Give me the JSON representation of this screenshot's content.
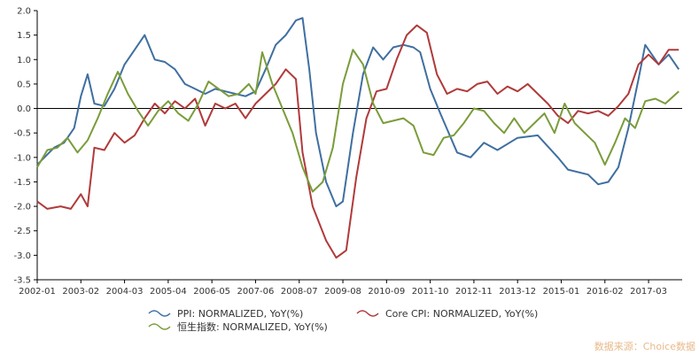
{
  "chart_data": {
    "type": "line",
    "title": "",
    "xlabel": "",
    "ylabel": "",
    "ylim": [
      -3.5,
      2.0
    ],
    "yticks": [
      -3.5,
      -3.0,
      -2.5,
      -2.0,
      -1.5,
      -1.0,
      -0.5,
      0.0,
      0.5,
      1.0,
      1.5,
      2.0
    ],
    "ytick_labels": [
      "-3.5",
      "-3.0",
      "-2.5",
      "-2.0",
      "-1.5",
      "-1.0",
      "-0.5",
      "0.0",
      "0.5",
      "1.0",
      "1.5",
      "2.0"
    ],
    "xlim": [
      "2002-01",
      "2018-01"
    ],
    "xticks": [
      "2002-01",
      "2003-02",
      "2004-03",
      "2005-04",
      "2006-05",
      "2007-06",
      "2008-07",
      "2009-08",
      "2010-09",
      "2011-10",
      "2012-11",
      "2013-12",
      "2015-01",
      "2016-02",
      "2017-03"
    ],
    "grid": false,
    "legend_position": "bottom",
    "series": [
      {
        "name": "PPI: NORMALIZED, YoY(%)",
        "color": "#3f6fa0",
        "points": [
          [
            "2002-01",
            -1.15
          ],
          [
            "2002-06",
            -0.8
          ],
          [
            "2002-09",
            -0.7
          ],
          [
            "2002-12",
            -0.4
          ],
          [
            "2003-02",
            0.25
          ],
          [
            "2003-04",
            0.7
          ],
          [
            "2003-06",
            0.1
          ],
          [
            "2003-09",
            0.05
          ],
          [
            "2003-12",
            0.4
          ],
          [
            "2004-03",
            0.9
          ],
          [
            "2004-06",
            1.2
          ],
          [
            "2004-09",
            1.5
          ],
          [
            "2004-12",
            1.0
          ],
          [
            "2005-03",
            0.95
          ],
          [
            "2005-06",
            0.8
          ],
          [
            "2005-09",
            0.5
          ],
          [
            "2005-12",
            0.4
          ],
          [
            "2006-03",
            0.3
          ],
          [
            "2006-06",
            0.4
          ],
          [
            "2006-09",
            0.35
          ],
          [
            "2006-12",
            0.3
          ],
          [
            "2007-03",
            0.25
          ],
          [
            "2007-06",
            0.35
          ],
          [
            "2007-09",
            0.8
          ],
          [
            "2007-12",
            1.3
          ],
          [
            "2008-03",
            1.5
          ],
          [
            "2008-06",
            1.8
          ],
          [
            "2008-08",
            1.85
          ],
          [
            "2008-10",
            0.8
          ],
          [
            "2008-12",
            -0.5
          ],
          [
            "2009-03",
            -1.5
          ],
          [
            "2009-06",
            -2.0
          ],
          [
            "2009-08",
            -1.9
          ],
          [
            "2009-11",
            -0.5
          ],
          [
            "2010-02",
            0.7
          ],
          [
            "2010-05",
            1.25
          ],
          [
            "2010-08",
            1.0
          ],
          [
            "2010-11",
            1.25
          ],
          [
            "2011-02",
            1.3
          ],
          [
            "2011-05",
            1.25
          ],
          [
            "2011-07",
            1.15
          ],
          [
            "2011-10",
            0.4
          ],
          [
            "2012-01",
            -0.1
          ],
          [
            "2012-06",
            -0.9
          ],
          [
            "2012-10",
            -1.0
          ],
          [
            "2013-02",
            -0.7
          ],
          [
            "2013-06",
            -0.85
          ],
          [
            "2013-12",
            -0.6
          ],
          [
            "2014-06",
            -0.55
          ],
          [
            "2014-12",
            -1.0
          ],
          [
            "2015-03",
            -1.25
          ],
          [
            "2015-09",
            -1.35
          ],
          [
            "2015-12",
            -1.55
          ],
          [
            "2016-03",
            -1.5
          ],
          [
            "2016-06",
            -1.2
          ],
          [
            "2016-09",
            -0.4
          ],
          [
            "2016-12",
            0.6
          ],
          [
            "2017-02",
            1.3
          ],
          [
            "2017-04",
            1.1
          ],
          [
            "2017-06",
            0.9
          ],
          [
            "2017-09",
            1.1
          ],
          [
            "2017-12",
            0.8
          ]
        ]
      },
      {
        "name": "Core CPI: NORMALIZED, YoY(%)",
        "color": "#b03a3a",
        "points": [
          [
            "2002-01",
            -1.9
          ],
          [
            "2002-04",
            -2.05
          ],
          [
            "2002-08",
            -2.0
          ],
          [
            "2002-11",
            -2.05
          ],
          [
            "2003-02",
            -1.75
          ],
          [
            "2003-04",
            -2.0
          ],
          [
            "2003-06",
            -0.8
          ],
          [
            "2003-09",
            -0.85
          ],
          [
            "2003-12",
            -0.5
          ],
          [
            "2004-03",
            -0.7
          ],
          [
            "2004-06",
            -0.55
          ],
          [
            "2004-09",
            -0.2
          ],
          [
            "2004-12",
            0.1
          ],
          [
            "2005-03",
            -0.1
          ],
          [
            "2005-06",
            0.15
          ],
          [
            "2005-09",
            0.0
          ],
          [
            "2005-12",
            0.2
          ],
          [
            "2006-03",
            -0.35
          ],
          [
            "2006-06",
            0.1
          ],
          [
            "2006-09",
            0.0
          ],
          [
            "2006-12",
            0.1
          ],
          [
            "2007-03",
            -0.2
          ],
          [
            "2007-06",
            0.1
          ],
          [
            "2007-09",
            0.3
          ],
          [
            "2007-12",
            0.5
          ],
          [
            "2008-03",
            0.8
          ],
          [
            "2008-06",
            0.6
          ],
          [
            "2008-08",
            -0.9
          ],
          [
            "2008-11",
            -2.0
          ],
          [
            "2009-03",
            -2.7
          ],
          [
            "2009-06",
            -3.05
          ],
          [
            "2009-09",
            -2.9
          ],
          [
            "2009-12",
            -1.4
          ],
          [
            "2010-03",
            -0.2
          ],
          [
            "2010-06",
            0.35
          ],
          [
            "2010-09",
            0.4
          ],
          [
            "2010-12",
            1.0
          ],
          [
            "2011-03",
            1.5
          ],
          [
            "2011-06",
            1.7
          ],
          [
            "2011-09",
            1.55
          ],
          [
            "2011-12",
            0.7
          ],
          [
            "2012-03",
            0.3
          ],
          [
            "2012-06",
            0.4
          ],
          [
            "2012-09",
            0.35
          ],
          [
            "2012-12",
            0.5
          ],
          [
            "2013-03",
            0.55
          ],
          [
            "2013-06",
            0.3
          ],
          [
            "2013-09",
            0.45
          ],
          [
            "2013-12",
            0.35
          ],
          [
            "2014-03",
            0.5
          ],
          [
            "2014-06",
            0.3
          ],
          [
            "2014-09",
            0.1
          ],
          [
            "2014-12",
            -0.15
          ],
          [
            "2015-03",
            -0.3
          ],
          [
            "2015-06",
            -0.05
          ],
          [
            "2015-09",
            -0.1
          ],
          [
            "2015-12",
            -0.05
          ],
          [
            "2016-03",
            -0.15
          ],
          [
            "2016-06",
            0.05
          ],
          [
            "2016-09",
            0.3
          ],
          [
            "2016-12",
            0.9
          ],
          [
            "2017-03",
            1.1
          ],
          [
            "2017-06",
            0.9
          ],
          [
            "2017-09",
            1.2
          ],
          [
            "2017-12",
            1.2
          ]
        ]
      },
      {
        "name": "恒生指数: NORMALIZED, YoY(%)",
        "color": "#7a9c3a",
        "points": [
          [
            "2002-01",
            -1.2
          ],
          [
            "2002-04",
            -0.85
          ],
          [
            "2002-07",
            -0.8
          ],
          [
            "2002-10",
            -0.6
          ],
          [
            "2003-01",
            -0.9
          ],
          [
            "2003-04",
            -0.65
          ],
          [
            "2003-07",
            -0.2
          ],
          [
            "2003-10",
            0.3
          ],
          [
            "2004-01",
            0.75
          ],
          [
            "2004-04",
            0.3
          ],
          [
            "2004-07",
            -0.05
          ],
          [
            "2004-10",
            -0.35
          ],
          [
            "2005-01",
            -0.05
          ],
          [
            "2005-04",
            0.15
          ],
          [
            "2005-07",
            -0.1
          ],
          [
            "2005-10",
            -0.25
          ],
          [
            "2006-01",
            0.1
          ],
          [
            "2006-04",
            0.55
          ],
          [
            "2006-07",
            0.4
          ],
          [
            "2006-10",
            0.25
          ],
          [
            "2007-01",
            0.3
          ],
          [
            "2007-04",
            0.5
          ],
          [
            "2007-06",
            0.3
          ],
          [
            "2007-08",
            1.15
          ],
          [
            "2007-11",
            0.5
          ],
          [
            "2008-02",
            0.0
          ],
          [
            "2008-05",
            -0.5
          ],
          [
            "2008-08",
            -1.2
          ],
          [
            "2008-11",
            -1.7
          ],
          [
            "2009-02",
            -1.5
          ],
          [
            "2009-05",
            -0.8
          ],
          [
            "2009-08",
            0.5
          ],
          [
            "2009-11",
            1.2
          ],
          [
            "2010-02",
            0.9
          ],
          [
            "2010-05",
            0.1
          ],
          [
            "2010-08",
            -0.3
          ],
          [
            "2010-11",
            -0.25
          ],
          [
            "2011-02",
            -0.2
          ],
          [
            "2011-05",
            -0.35
          ],
          [
            "2011-08",
            -0.9
          ],
          [
            "2011-11",
            -0.95
          ],
          [
            "2012-02",
            -0.6
          ],
          [
            "2012-05",
            -0.55
          ],
          [
            "2012-08",
            -0.3
          ],
          [
            "2012-11",
            0.0
          ],
          [
            "2013-02",
            -0.05
          ],
          [
            "2013-05",
            -0.3
          ],
          [
            "2013-08",
            -0.5
          ],
          [
            "2013-11",
            -0.2
          ],
          [
            "2014-02",
            -0.5
          ],
          [
            "2014-05",
            -0.3
          ],
          [
            "2014-08",
            -0.1
          ],
          [
            "2014-11",
            -0.5
          ],
          [
            "2015-02",
            0.1
          ],
          [
            "2015-05",
            -0.3
          ],
          [
            "2015-08",
            -0.5
          ],
          [
            "2015-11",
            -0.7
          ],
          [
            "2016-02",
            -1.15
          ],
          [
            "2016-05",
            -0.7
          ],
          [
            "2016-08",
            -0.2
          ],
          [
            "2016-11",
            -0.4
          ],
          [
            "2017-02",
            0.15
          ],
          [
            "2017-05",
            0.2
          ],
          [
            "2017-08",
            0.1
          ],
          [
            "2017-12",
            0.35
          ]
        ]
      }
    ]
  },
  "watermark": "数据来源：Choice数据"
}
